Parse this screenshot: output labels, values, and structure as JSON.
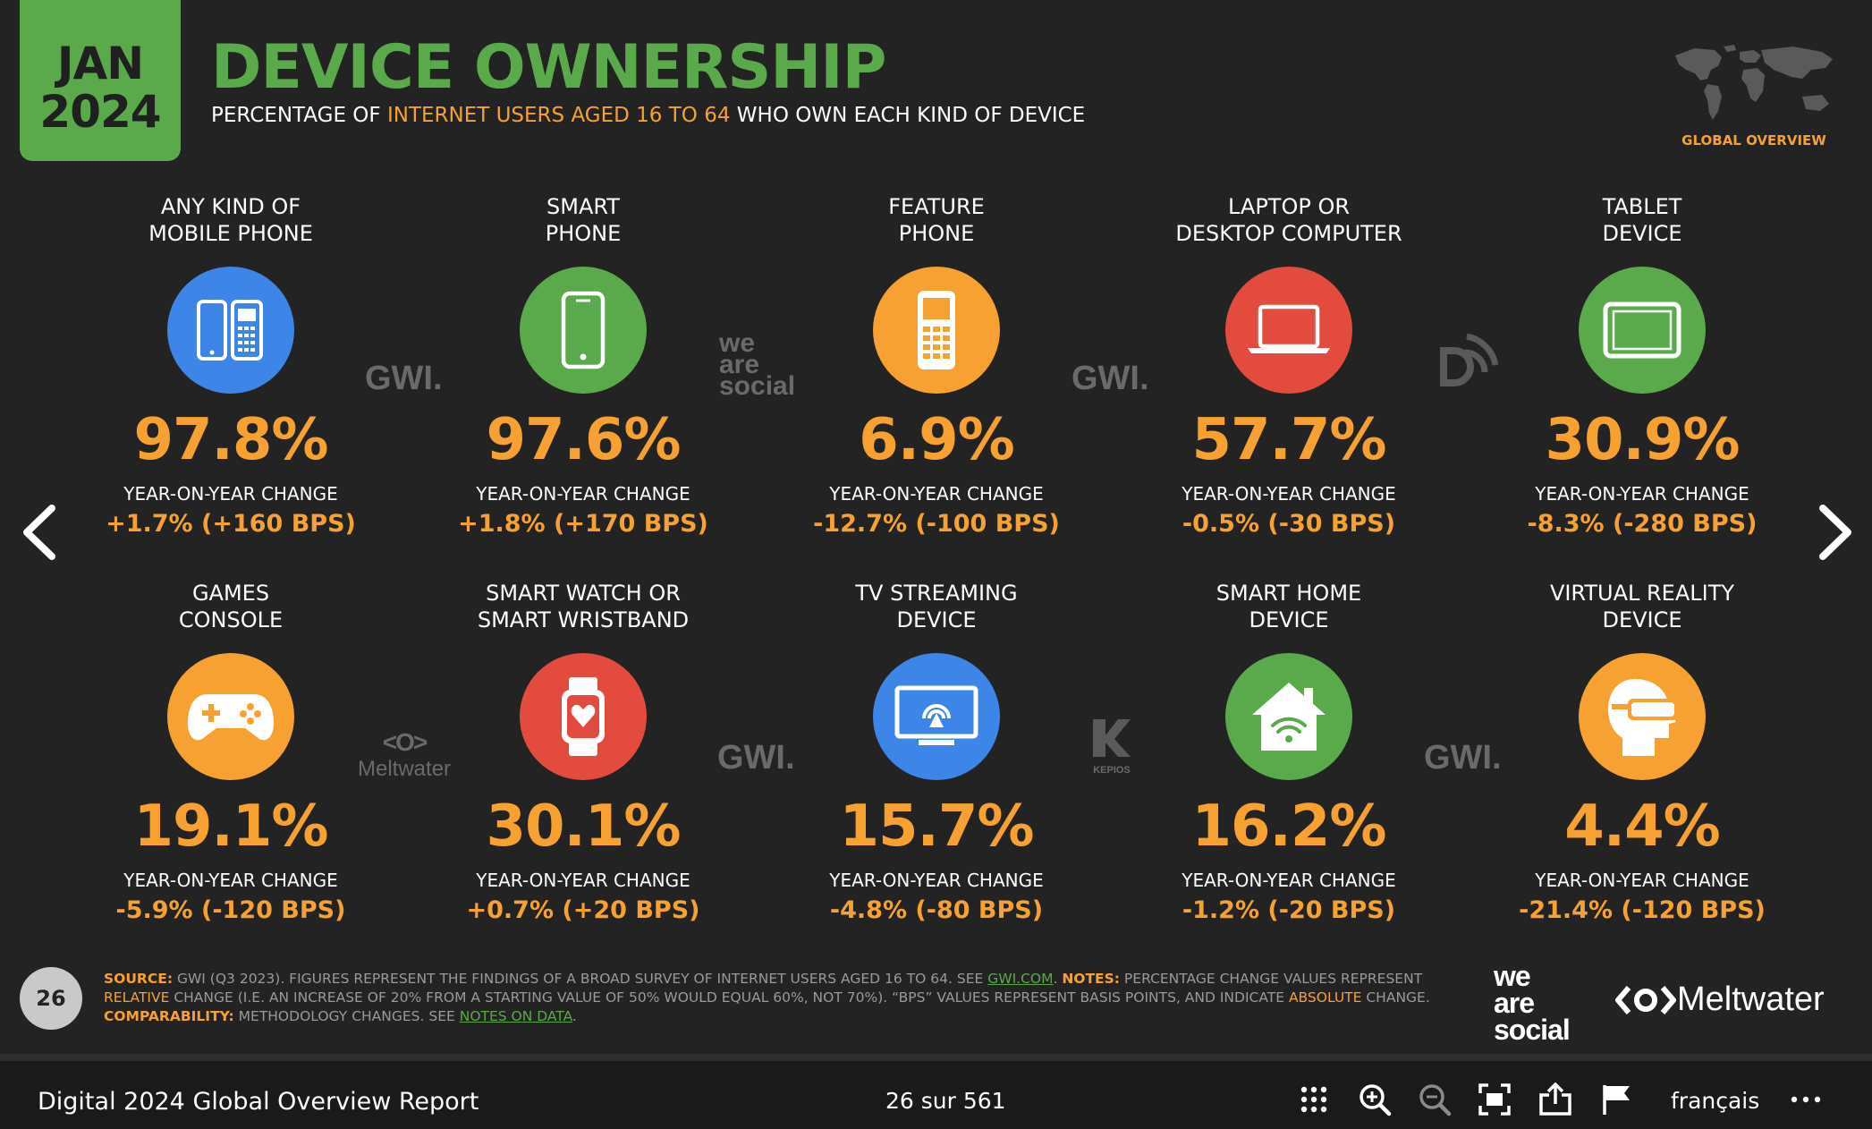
{
  "header": {
    "month": "JAN",
    "year": "2024",
    "title": "DEVICE OWNERSHIP",
    "subtitle_pre": "PERCENTAGE OF ",
    "subtitle_hl": "INTERNET USERS AGED 16 TO 64",
    "subtitle_post": " WHO OWN EACH KIND OF DEVICE",
    "badge": "GLOBAL OVERVIEW"
  },
  "yoy_label": "YEAR-ON-YEAR CHANGE",
  "devices": [
    {
      "label1": "ANY KIND OF",
      "label2": "MOBILE PHONE",
      "value": "97.8%",
      "change": "+1.7% (+160 BPS)",
      "color": "#3d86e8",
      "icon": "mobile-phones-icon"
    },
    {
      "label1": "SMART",
      "label2": "PHONE",
      "value": "97.6%",
      "change": "+1.8% (+170 BPS)",
      "color": "#5aaa4b",
      "icon": "smartphone-icon"
    },
    {
      "label1": "FEATURE",
      "label2": "PHONE",
      "value": "6.9%",
      "change": "-12.7% (-100 BPS)",
      "color": "#f7a132",
      "icon": "feature-phone-icon"
    },
    {
      "label1": "LAPTOP OR",
      "label2": "DESKTOP COMPUTER",
      "value": "57.7%",
      "change": "-0.5% (-30 BPS)",
      "color": "#e24b3e",
      "icon": "laptop-icon"
    },
    {
      "label1": "TABLET",
      "label2": "DEVICE",
      "value": "30.9%",
      "change": "-8.3% (-280 BPS)",
      "color": "#5aaa4b",
      "icon": "tablet-icon"
    },
    {
      "label1": "GAMES",
      "label2": "CONSOLE",
      "value": "19.1%",
      "change": "-5.9% (-120 BPS)",
      "color": "#f7a132",
      "icon": "gamepad-icon"
    },
    {
      "label1": "SMART WATCH OR",
      "label2": "SMART WRISTBAND",
      "value": "30.1%",
      "change": "+0.7% (+20 BPS)",
      "color": "#e24b3e",
      "icon": "smartwatch-icon"
    },
    {
      "label1": "TV STREAMING",
      "label2": "DEVICE",
      "value": "15.7%",
      "change": "-4.8% (-80 BPS)",
      "color": "#3d86e8",
      "icon": "tv-streaming-icon"
    },
    {
      "label1": "SMART HOME",
      "label2": "DEVICE",
      "value": "16.2%",
      "change": "-1.2% (-20 BPS)",
      "color": "#5aaa4b",
      "icon": "smart-home-icon"
    },
    {
      "label1": "VIRTUAL REALITY",
      "label2": "DEVICE",
      "value": "4.4%",
      "change": "-21.4% (-120 BPS)",
      "color": "#f7a132",
      "icon": "vr-headset-icon"
    }
  ],
  "watermarks": {
    "gwi": "GWI.",
    "we": "we",
    "are": "are",
    "social": "social",
    "meltwater": "Meltwater",
    "kepios": "KEPIOS"
  },
  "footer": {
    "page_number": "26",
    "source_key": "SOURCE:",
    "source_text_1": " GWI (Q3 2023). FIGURES REPRESENT THE FINDINGS OF A BROAD SURVEY OF INTERNET USERS AGED 16 TO 64. SEE ",
    "source_link": "GWI.COM",
    "source_text_2": ". ",
    "notes_key": "NOTES:",
    "notes_text_1": " PERCENTAGE CHANGE VALUES REPRESENT ",
    "notes_relative": "RELATIVE",
    "notes_text_2": " CHANGE (I.E. AN INCREASE OF 20% FROM A STARTING VALUE OF 50% WOULD EQUAL 60%, NOT 70%). “BPS” VALUES REPRESENT BASIS POINTS, AND INDICATE ",
    "notes_absolute": "ABSOLUTE",
    "notes_text_3": " CHANGE. ",
    "comp_key": "COMPARABILITY:",
    "comp_text": " METHODOLOGY CHANGES. SEE ",
    "comp_link": "NOTES ON DATA",
    "comp_end": ".",
    "logo_we": "we",
    "logo_are": "are",
    "logo_social": "social",
    "logo_meltwater": "Meltwater"
  },
  "toolbar": {
    "doc_title": "Digital 2024 Global Overview Report",
    "page_indicator": "26 sur 561",
    "language": "français"
  }
}
